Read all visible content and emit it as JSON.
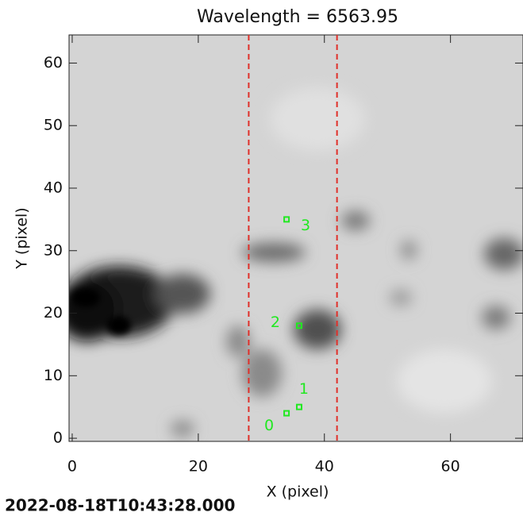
{
  "chart_data": {
    "type": "image",
    "title": "Wavelength = 6563.95",
    "x_label": "X (pixel)",
    "y_label": "Y (pixel)",
    "timestamp": "2022-08-18T10:43:28.000",
    "xlim": [
      -0.5,
      71.5
    ],
    "ylim": [
      -0.5,
      64.5
    ],
    "xticks": [
      0,
      20,
      40,
      60
    ],
    "yticks": [
      0,
      10,
      20,
      30,
      40,
      50,
      60
    ],
    "vlines": [
      28,
      42
    ],
    "vline_color": "#e0302a",
    "points": [
      {
        "label": "0",
        "x": 34,
        "y": 4
      },
      {
        "label": "1",
        "x": 36,
        "y": 5
      },
      {
        "label": "2",
        "x": 36,
        "y": 18
      },
      {
        "label": "3",
        "x": 34,
        "y": 35
      }
    ],
    "point_color": "#22e822"
  }
}
